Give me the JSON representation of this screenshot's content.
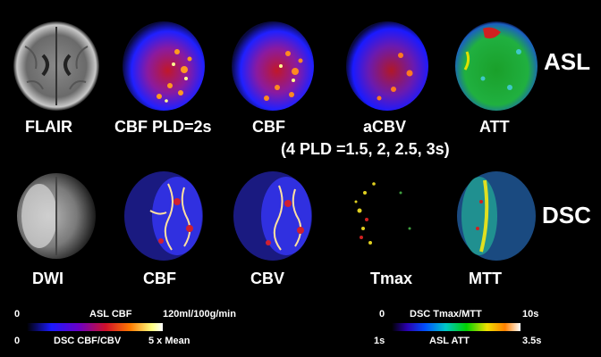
{
  "section_labels": {
    "asl": "ASL",
    "dsc": "DSC"
  },
  "row1": {
    "labels": [
      "FLAIR",
      "CBF  PLD=2s",
      "CBF",
      "aCBV",
      "ATT"
    ],
    "subtitle": "(4 PLD =1.5, 2, 2.5, 3s)"
  },
  "row2": {
    "labels": [
      "DWI",
      "CBF",
      "CBV",
      "Tmax",
      "MTT"
    ]
  },
  "legend_left": {
    "asl_cbf_min": "0",
    "asl_cbf_label": "ASL CBF",
    "asl_cbf_max": "120ml/100g/min",
    "dsc_min": "0",
    "dsc_label": "DSC CBF/CBV",
    "dsc_max": "5 x Mean"
  },
  "legend_right": {
    "dsc_tmax_min": "0",
    "dsc_tmax_label": "DSC Tmax/MTT",
    "dsc_tmax_max": "10s",
    "att_min": "1s",
    "att_label": "ASL ATT",
    "att_max": "3.5s"
  },
  "colors": {
    "background": "#000000",
    "colormap_blue_red_yellow": [
      "#000000",
      "#1a1aff",
      "#6a00c8",
      "#d0102a",
      "#ff7a00",
      "#ffff80",
      "#ffffff"
    ],
    "colormap_rainbow": [
      "#000000",
      "#2a00b0",
      "#0050ff",
      "#00c8c8",
      "#00d000",
      "#f0e000",
      "#ff8000",
      "#ffffff"
    ]
  }
}
